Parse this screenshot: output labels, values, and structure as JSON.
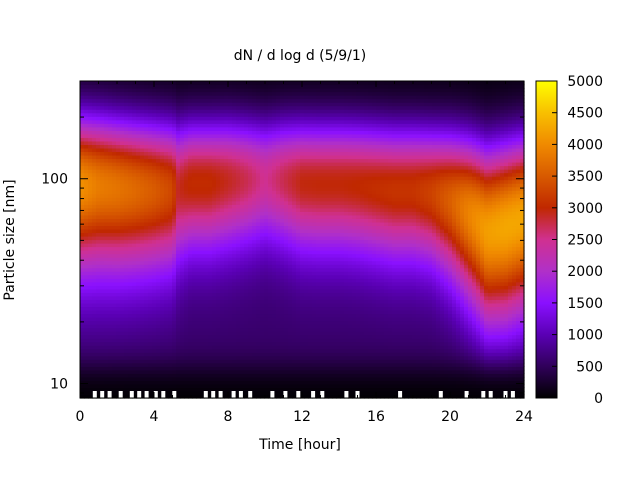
{
  "chart_data": {
    "type": "heatmap",
    "title": "dN / d log d (5/9/1)",
    "xlabel": "Time [hour]",
    "ylabel": "Particle size [nm]",
    "xlim": [
      0,
      24
    ],
    "ylim": [
      8.5,
      300
    ],
    "y_scale": "log",
    "x_ticks": [
      0,
      4,
      8,
      12,
      16,
      20,
      24
    ],
    "x_tick_labels": [
      "0",
      "4",
      "8",
      "12",
      "16",
      "20",
      "24"
    ],
    "y_ticks": [
      10,
      100
    ],
    "y_tick_labels": [
      "10",
      "100"
    ],
    "colorbar": {
      "min": 0,
      "max": 5000,
      "ticks": [
        0,
        500,
        1000,
        1500,
        2000,
        2500,
        3000,
        3500,
        4000,
        4500,
        5000
      ],
      "tick_labels": [
        "0",
        "500",
        "1000",
        "1500",
        "2000",
        "2500",
        "3000",
        "3500",
        "4000",
        "4500",
        "5000"
      ],
      "colormap": [
        "#000000",
        "#30005a",
        "#5a00b4",
        "#8a10ff",
        "#b030c8",
        "#d03090",
        "#c02800",
        "#d85a00",
        "#f08a00",
        "#f8c000",
        "#ffff00"
      ]
    },
    "profile_hours": [
      0,
      1,
      2,
      3,
      4,
      5,
      5.3,
      6,
      7,
      8,
      9,
      10,
      11,
      12,
      13,
      14,
      15,
      16,
      17,
      18,
      19,
      20,
      21,
      22,
      23,
      24
    ],
    "profile_peak_nm": [
      130,
      128,
      120,
      115,
      112,
      110,
      112,
      120,
      120,
      125,
      125,
      125,
      125,
      120,
      118,
      118,
      115,
      110,
      105,
      105,
      100,
      90,
      75,
      58,
      62,
      70
    ],
    "profile_peak_value": [
      4400,
      4100,
      3900,
      3700,
      3500,
      3250,
      2800,
      3100,
      3100,
      3000,
      2800,
      2500,
      2800,
      3000,
      3000,
      3000,
      3000,
      3000,
      3000,
      3000,
      3100,
      3300,
      3550,
      3700,
      3800,
      3850
    ],
    "profile_width_log10": [
      0.36,
      0.36,
      0.35,
      0.34,
      0.33,
      0.32,
      0.3,
      0.28,
      0.28,
      0.28,
      0.27,
      0.26,
      0.27,
      0.28,
      0.28,
      0.28,
      0.28,
      0.28,
      0.28,
      0.28,
      0.28,
      0.3,
      0.32,
      0.33,
      0.34,
      0.34
    ],
    "missing_data_hours": [
      0.8,
      1.2,
      1.6,
      2.2,
      2.8,
      3.2,
      3.6,
      4.1,
      4.5,
      5.1,
      6.8,
      7.2,
      7.6,
      8.3,
      8.7,
      9.2,
      10.4,
      11.1,
      11.8,
      12.6,
      13.1,
      14.4,
      15.0,
      17.3,
      19.5,
      20.9,
      21.8,
      22.2,
      23.0,
      23.4
    ]
  }
}
